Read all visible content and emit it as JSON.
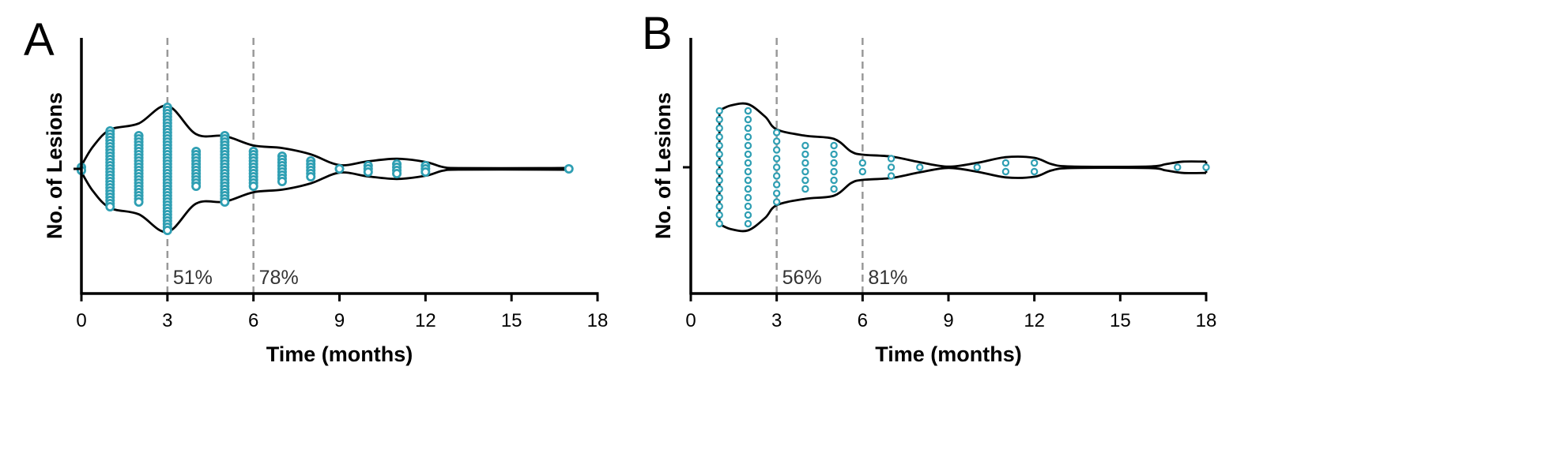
{
  "chart_data": [
    {
      "type": "violin-dotplot",
      "panel_label": "A",
      "xlabel": "Time (months)",
      "ylabel": "No. of Lesions",
      "xlim": [
        0,
        18
      ],
      "xticks": [
        0,
        3,
        6,
        9,
        12,
        15,
        18
      ],
      "vlines": [
        {
          "x": 3,
          "label": "51%"
        },
        {
          "x": 6,
          "label": "78%"
        }
      ],
      "points": [
        {
          "x": 0,
          "n": 2
        },
        {
          "x": 1,
          "n": 25
        },
        {
          "x": 2,
          "n": 22
        },
        {
          "x": 3,
          "n": 40
        },
        {
          "x": 4,
          "n": 12
        },
        {
          "x": 5,
          "n": 22
        },
        {
          "x": 6,
          "n": 12
        },
        {
          "x": 7,
          "n": 9
        },
        {
          "x": 8,
          "n": 6
        },
        {
          "x": 9,
          "n": 1
        },
        {
          "x": 10,
          "n": 3
        },
        {
          "x": 11,
          "n": 4
        },
        {
          "x": 12,
          "n": 3
        },
        {
          "x": 17,
          "n": 1
        }
      ],
      "density": [
        [
          0,
          0.05
        ],
        [
          0.4,
          0.35
        ],
        [
          1,
          0.62
        ],
        [
          2,
          0.72
        ],
        [
          3,
          1.0
        ],
        [
          4,
          0.55
        ],
        [
          5,
          0.52
        ],
        [
          6,
          0.37
        ],
        [
          7,
          0.33
        ],
        [
          8,
          0.23
        ],
        [
          9,
          0.06
        ],
        [
          10,
          0.12
        ],
        [
          11,
          0.16
        ],
        [
          12,
          0.11
        ],
        [
          12.6,
          0.03
        ],
        [
          13.2,
          0.012
        ],
        [
          16,
          0.012
        ],
        [
          17,
          0.015
        ]
      ]
    },
    {
      "type": "violin-dotplot",
      "panel_label": "B",
      "xlabel": "Time (months)",
      "ylabel": "No. of Lesions",
      "xlim": [
        0,
        18
      ],
      "xticks": [
        0,
        3,
        6,
        9,
        12,
        15,
        18
      ],
      "vlines": [
        {
          "x": 3,
          "label": "56%"
        },
        {
          "x": 6,
          "label": "81%"
        }
      ],
      "points": [
        {
          "x": 1,
          "n": 14
        },
        {
          "x": 2,
          "n": 14
        },
        {
          "x": 3,
          "n": 9
        },
        {
          "x": 4,
          "n": 6
        },
        {
          "x": 5,
          "n": 6
        },
        {
          "x": 6,
          "n": 2
        },
        {
          "x": 7,
          "n": 3
        },
        {
          "x": 8,
          "n": 1
        },
        {
          "x": 10,
          "n": 1
        },
        {
          "x": 11,
          "n": 2
        },
        {
          "x": 12,
          "n": 2
        },
        {
          "x": 17,
          "n": 1
        },
        {
          "x": 18,
          "n": 1
        }
      ],
      "density": [
        [
          1,
          0.9
        ],
        [
          1.4,
          0.98
        ],
        [
          2,
          1.0
        ],
        [
          2.6,
          0.8
        ],
        [
          3,
          0.6
        ],
        [
          4,
          0.5
        ],
        [
          5,
          0.45
        ],
        [
          5.6,
          0.25
        ],
        [
          6,
          0.2
        ],
        [
          7,
          0.17
        ],
        [
          8,
          0.08
        ],
        [
          9,
          0.01
        ],
        [
          10,
          0.07
        ],
        [
          11,
          0.16
        ],
        [
          12,
          0.15
        ],
        [
          12.6,
          0.05
        ],
        [
          13.3,
          0.012
        ],
        [
          16,
          0.012
        ],
        [
          16.6,
          0.05
        ],
        [
          17.2,
          0.09
        ],
        [
          18,
          0.09
        ]
      ]
    }
  ]
}
